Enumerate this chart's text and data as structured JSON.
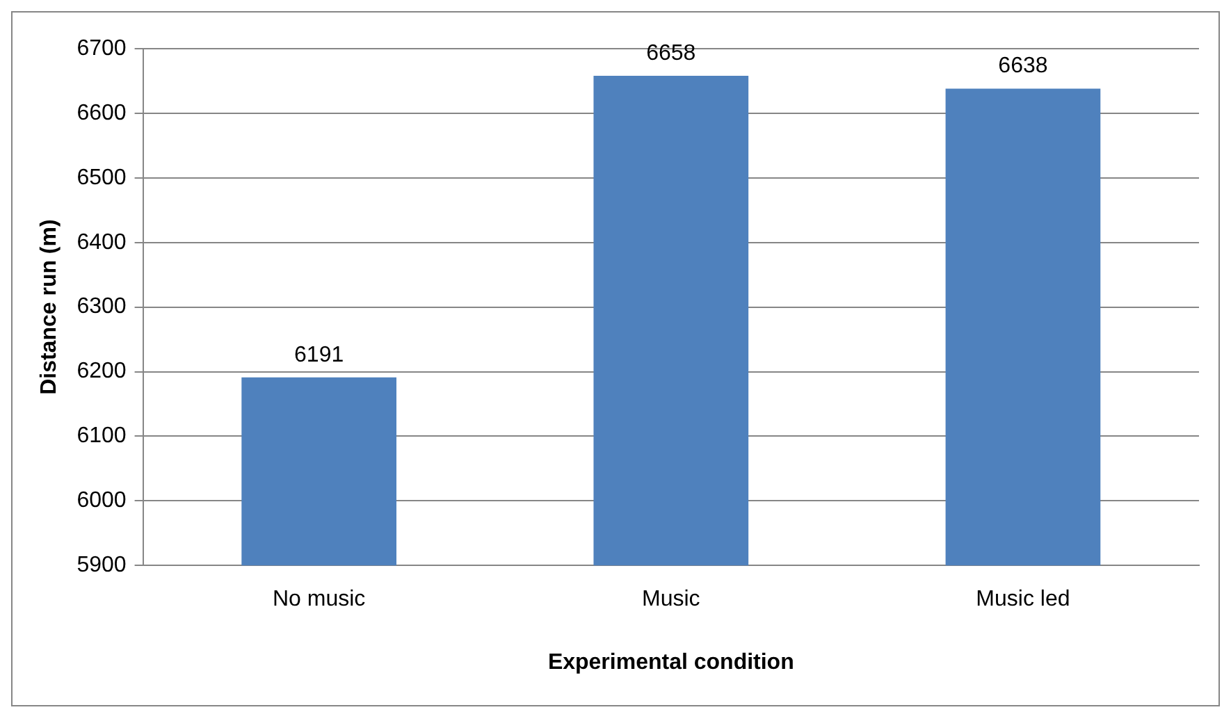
{
  "chart_data": {
    "type": "bar",
    "xlabel": "Experimental condition",
    "ylabel": "Distance run (m)",
    "categories": [
      "No music",
      "Music",
      "Music led"
    ],
    "series": [
      {
        "color": "#4f81bd",
        "values": [
          6191,
          6658,
          6638
        ]
      }
    ],
    "ylim": [
      5900,
      6700
    ],
    "yticks": [
      5900,
      6000,
      6100,
      6200,
      6300,
      6400,
      6500,
      6600,
      6700
    ],
    "grid": "y",
    "legend": false,
    "data_labels": true
  }
}
